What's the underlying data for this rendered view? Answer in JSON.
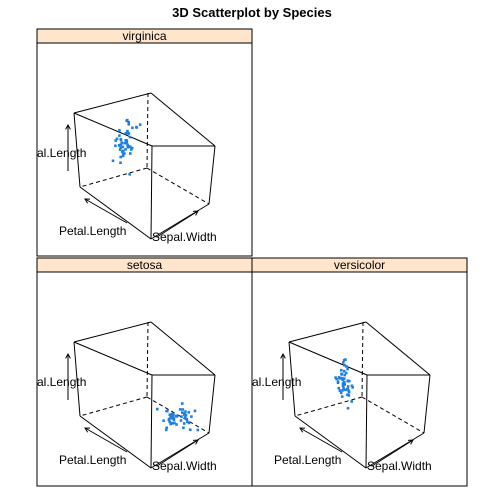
{
  "chart_data": {
    "type": "scatter",
    "title": "3D Scatterplot by Species",
    "axes": {
      "x": "Sepal.Width",
      "y": "Petal.Length",
      "z": "Sepal.Length"
    },
    "axis_labels_shown": {
      "front": "Petal.Length",
      "right": "Sepal.Width",
      "left": "al.Length"
    },
    "colors": {
      "points": "#1f7fe0",
      "strip": "#ffe5cc"
    },
    "grid": false,
    "panels": [
      {
        "species": "virginica",
        "points_count": 50
      },
      {
        "species": "setosa",
        "points_count": 50
      },
      {
        "species": "versicolor",
        "points_count": 50
      }
    ]
  }
}
